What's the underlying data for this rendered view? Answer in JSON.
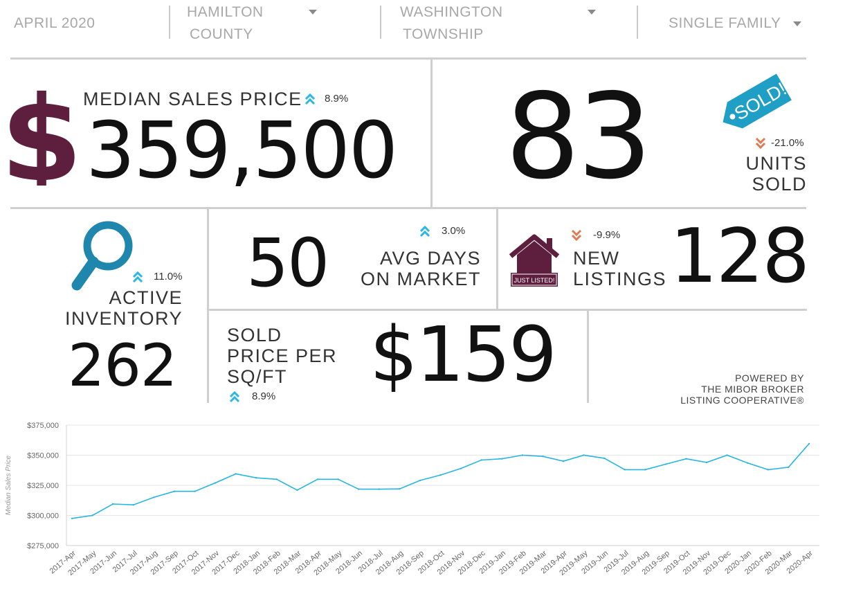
{
  "filters": {
    "date": "APRIL 2020",
    "county": [
      "HAMILTON",
      "COUNTY"
    ],
    "township": [
      "WASHINGTON",
      "TOWNSHIP"
    ],
    "property_type": "SINGLE FAMILY"
  },
  "median_price": {
    "label": "MEDIAN SALES PRICE",
    "change": "8.9%",
    "direction": "up",
    "value": "359,500",
    "icon": "dollar-icon"
  },
  "units_sold": {
    "value": "83",
    "change": "-21.0%",
    "direction": "down",
    "label": [
      "UNITS",
      "SOLD"
    ],
    "tag_text": "SOLD!",
    "icon": "sold-tag-icon"
  },
  "active_inventory": {
    "change": "11.0%",
    "direction": "up",
    "label": [
      "ACTIVE",
      "INVENTORY"
    ],
    "value": "262",
    "icon": "magnifier-icon"
  },
  "avg_days": {
    "value": "50",
    "change": "3.0%",
    "direction": "up",
    "label": [
      "AVG DAYS",
      "ON MARKET"
    ]
  },
  "new_listings": {
    "change": "-9.9%",
    "direction": "down",
    "label": [
      "NEW",
      "LISTINGS"
    ],
    "value": "128",
    "sign_text": "JUST LISTED!",
    "icon": "house-icon"
  },
  "price_sqft": {
    "label": [
      "SOLD",
      "PRICE PER",
      "SQ/FT"
    ],
    "change": "8.9%",
    "direction": "up",
    "value": "$159"
  },
  "powered_by": [
    "POWERED BY",
    "THE MIBOR BROKER",
    "LISTING COOPERATIVE®"
  ],
  "colors": {
    "accent_up": "#2ab7e6",
    "accent_down": "#e07a52",
    "maroon": "#5e1f3e",
    "line": "#29b5e3"
  },
  "chart_data": {
    "type": "line",
    "ylabel": "Median Sales Price",
    "ylim": [
      275000,
      375000
    ],
    "yticks": [
      "$275,000",
      "$300,000",
      "$325,000",
      "$350,000",
      "$375,000"
    ],
    "ytick_values": [
      275000,
      300000,
      325000,
      350000,
      375000
    ],
    "grid": true,
    "categories": [
      "2017-Apr",
      "2017-May",
      "2017-Jun",
      "2017-Jul",
      "2017-Aug",
      "2017-Sep",
      "2017-Oct",
      "2017-Nov",
      "2017-Dec",
      "2018-Jan",
      "2018-Feb",
      "2018-Mar",
      "2018-Apr",
      "2018-May",
      "2018-Jun",
      "2018-Jul",
      "2018-Aug",
      "2018-Sep",
      "2018-Oct",
      "2018-Nov",
      "2018-Dec",
      "2019-Jan",
      "2019-Feb",
      "2019-Mar",
      "2019-Apr",
      "2019-May",
      "2019-Jun",
      "2019-Jul",
      "2019-Aug",
      "2019-Sep",
      "2019-Oct",
      "2019-Nov",
      "2019-Dec",
      "2020-Jan",
      "2020-Feb",
      "2020-Mar",
      "2020-Apr"
    ],
    "values": [
      297500,
      300000,
      309500,
      308800,
      315000,
      320000,
      320000,
      327000,
      334500,
      331200,
      330000,
      321000,
      330000,
      330000,
      321800,
      321800,
      322000,
      329000,
      333500,
      339000,
      346000,
      347000,
      350000,
      349000,
      345000,
      350000,
      347500,
      338000,
      338000,
      342500,
      347000,
      344000,
      350000,
      343500,
      338000,
      340000,
      359500
    ]
  }
}
